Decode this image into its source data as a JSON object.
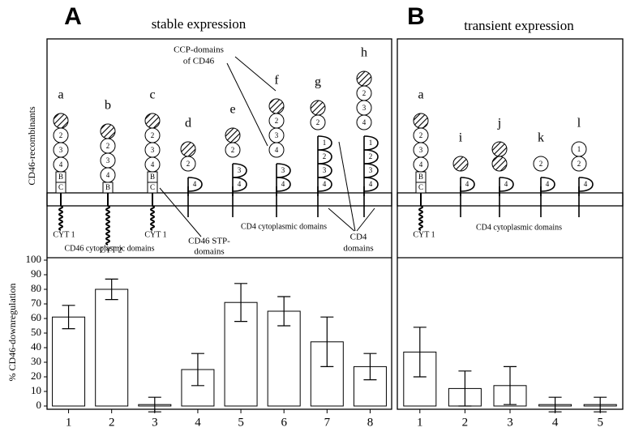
{
  "chart_data": [
    {
      "type": "bar",
      "panel": "A",
      "title": "stable expression",
      "ylabel": "% CD46-downregulation",
      "categories": [
        "1",
        "2",
        "3",
        "4",
        "5",
        "6",
        "7",
        "8"
      ],
      "values": [
        61,
        80,
        1,
        25,
        71,
        65,
        44,
        27
      ],
      "errors": [
        8,
        7,
        5,
        11,
        13,
        10,
        17,
        9
      ],
      "color": "#9a9a9a",
      "ylim": [
        0,
        100
      ],
      "yticks": [
        0,
        10,
        20,
        30,
        40,
        50,
        60,
        70,
        80,
        90,
        100
      ]
    },
    {
      "type": "bar",
      "panel": "B",
      "title": "transient expression",
      "categories": [
        "1",
        "2",
        "3",
        "4",
        "5"
      ],
      "values": [
        37,
        12,
        14,
        1,
        1
      ],
      "errors": [
        17,
        12,
        13,
        5,
        5
      ],
      "color": "#9a9a9a",
      "ylim": [
        0,
        100
      ]
    }
  ],
  "diagram": {
    "ylabel": "CD46-recombinants",
    "panels": [
      {
        "constructs": [
          {
            "label": "a",
            "ccp": [
              null,
              "2",
              "3",
              "4"
            ],
            "stp": [
              "B",
              "C"
            ],
            "tail": "CYT 1"
          },
          {
            "label": "b",
            "ccp": [
              null,
              "2",
              "3",
              "4"
            ],
            "stp": [
              "B"
            ],
            "tail": "CYT 2"
          },
          {
            "label": "c",
            "ccp": [
              null,
              "2",
              "3",
              "4"
            ],
            "stp": [
              "B",
              "C"
            ],
            "tail": "CYT 1"
          },
          {
            "label": "d",
            "ccp": [
              null,
              "2"
            ],
            "cd4": [
              "4"
            ]
          },
          {
            "label": "e",
            "ccp": [
              null,
              "2"
            ],
            "cd4": [
              "3",
              "4"
            ]
          },
          {
            "label": "f",
            "ccp": [
              null,
              "2",
              "3",
              "4"
            ],
            "cd4": [
              "3",
              "4"
            ]
          },
          {
            "label": "g",
            "ccp": [
              null,
              "2"
            ],
            "cd4": [
              "1",
              "2",
              "3",
              "4"
            ]
          },
          {
            "label": "h",
            "ccp": [
              null,
              "2",
              "3",
              "4"
            ],
            "cd4": [
              "1",
              "2",
              "3",
              "4"
            ]
          }
        ],
        "notes": [
          "CCP-domains",
          "of CD46",
          "CD46 cytoplasmic domains",
          "CD46 STP-",
          "domains",
          "CD4  cytoplasmic domains",
          "CD4",
          "domains"
        ]
      },
      {
        "constructs": [
          {
            "label": "a",
            "ccp": [
              null,
              "2",
              "3",
              "4"
            ],
            "stp": [
              "B",
              "C"
            ],
            "tail": "CYT 1"
          },
          {
            "label": "i",
            "ccp": [
              null
            ],
            "cd4": [
              "4"
            ]
          },
          {
            "label": "j",
            "ccp": [
              null,
              null
            ],
            "cd4": [
              "4"
            ]
          },
          {
            "label": "k",
            "ccp": [
              "2"
            ],
            "cd4": [
              "4"
            ]
          },
          {
            "label": "l",
            "ccp": [
              "1",
              "2"
            ],
            "cd4": [
              "4"
            ]
          }
        ],
        "notes": [
          "CD4  cytoplasmic domains"
        ]
      }
    ]
  }
}
